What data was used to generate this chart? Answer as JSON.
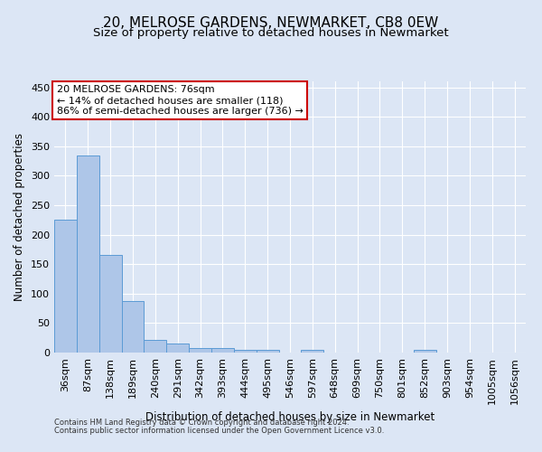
{
  "title1": "20, MELROSE GARDENS, NEWMARKET, CB8 0EW",
  "title2": "Size of property relative to detached houses in Newmarket",
  "xlabel": "Distribution of detached houses by size in Newmarket",
  "ylabel": "Number of detached properties",
  "bar_values": [
    225,
    335,
    165,
    87,
    21,
    16,
    7,
    8,
    5,
    5,
    0,
    5,
    0,
    0,
    0,
    0,
    4,
    0,
    0,
    0,
    0
  ],
  "bar_labels": [
    "36sqm",
    "87sqm",
    "138sqm",
    "189sqm",
    "240sqm",
    "291sqm",
    "342sqm",
    "393sqm",
    "444sqm",
    "495sqm",
    "546sqm",
    "597sqm",
    "648sqm",
    "699sqm",
    "750sqm",
    "801sqm",
    "852sqm",
    "903sqm",
    "954sqm",
    "1005sqm",
    "1056sqm"
  ],
  "bar_color": "#aec6e8",
  "bar_edge_color": "#5b9bd5",
  "ylim": [
    0,
    460
  ],
  "yticks": [
    0,
    50,
    100,
    150,
    200,
    250,
    300,
    350,
    400,
    450
  ],
  "annotation_text": "20 MELROSE GARDENS: 76sqm\n← 14% of detached houses are smaller (118)\n86% of semi-detached houses are larger (736) →",
  "annotation_box_color": "#ffffff",
  "annotation_box_edge": "#cc0000",
  "footer1": "Contains HM Land Registry data © Crown copyright and database right 2024.",
  "footer2": "Contains public sector information licensed under the Open Government Licence v3.0.",
  "bg_color": "#dce6f5",
  "plot_bg_color": "#dce6f5",
  "grid_color": "#ffffff",
  "title1_fontsize": 11,
  "title2_fontsize": 9.5,
  "ylabel_fontsize": 8.5,
  "xlabel_fontsize": 8.5,
  "tick_fontsize": 8,
  "ann_fontsize": 8,
  "footer_fontsize": 6
}
